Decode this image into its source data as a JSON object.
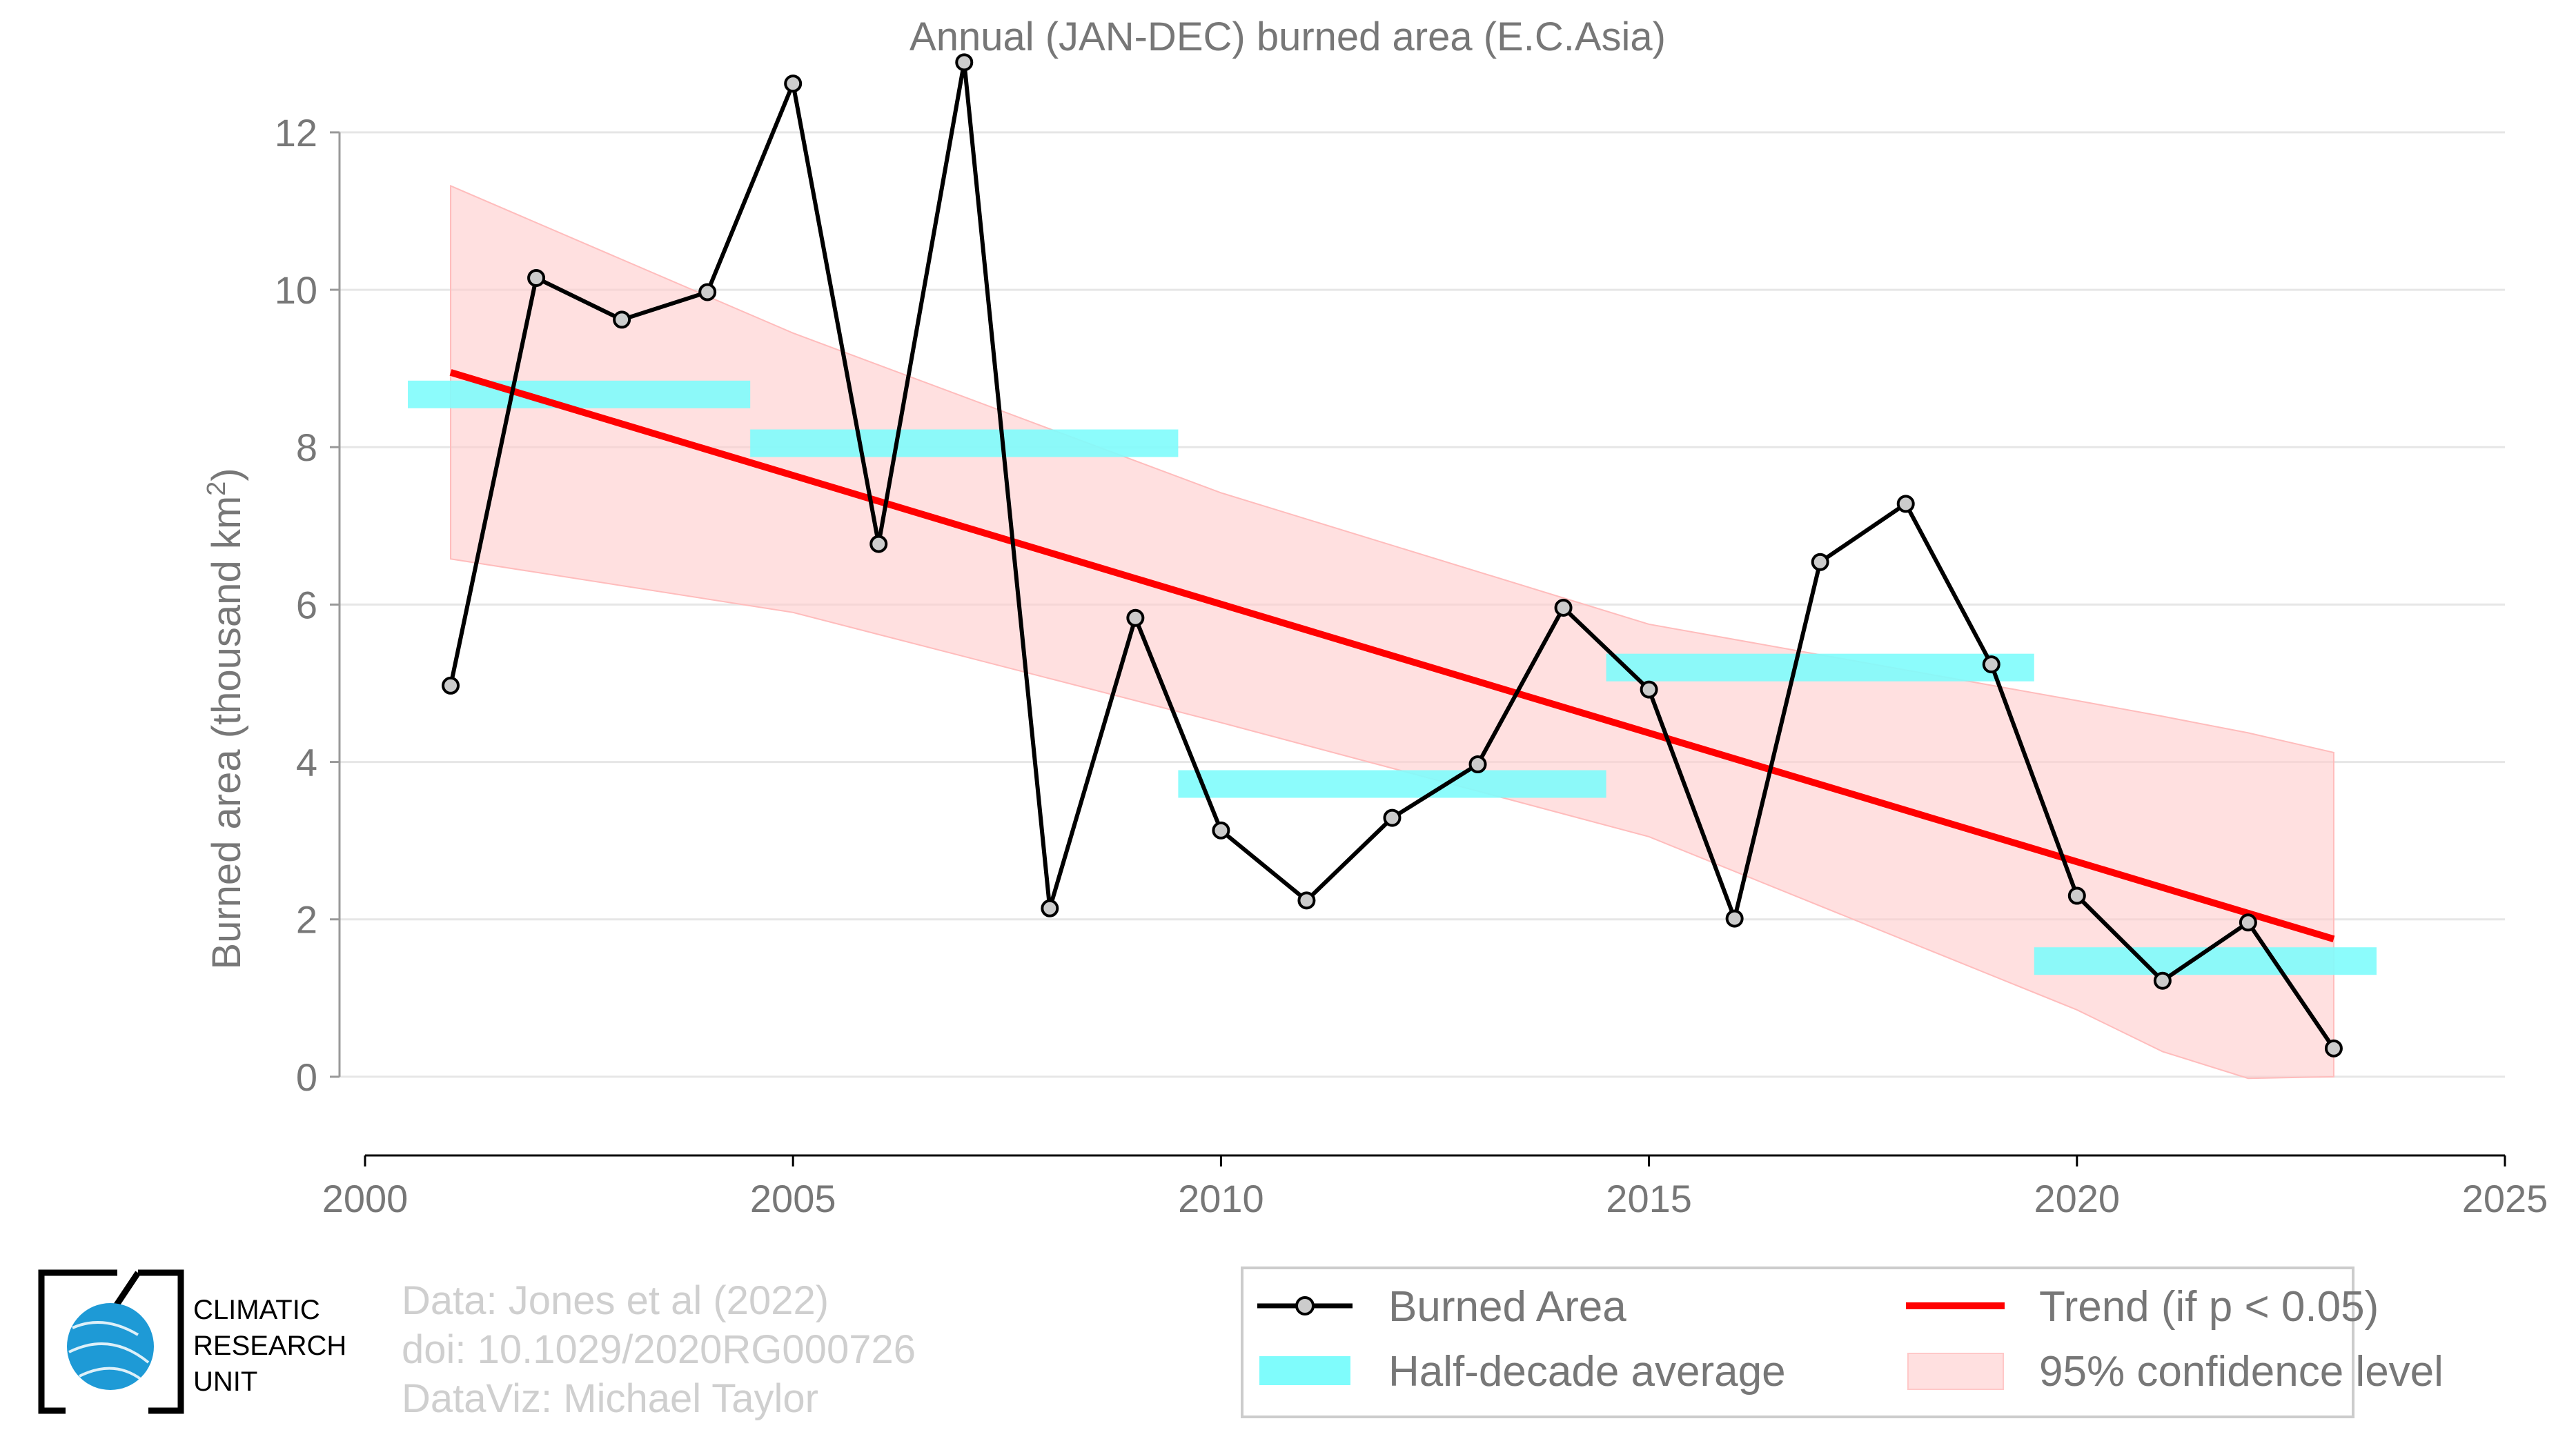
{
  "chart_data": {
    "type": "line",
    "title": "Annual (JAN-DEC) burned area (E.C.Asia)",
    "ylabel_main": "Burned area (thousand km",
    "ylabel_sup": "2",
    "ylabel_close": ")",
    "xlim": [
      2000,
      2025
    ],
    "ylim": [
      -1,
      13.2
    ],
    "x_ticks": [
      2000,
      2005,
      2010,
      2015,
      2020,
      2025
    ],
    "y_ticks": [
      0,
      2,
      4,
      6,
      8,
      10,
      12
    ],
    "grid": "horizontal",
    "series": [
      {
        "name": "Burned Area",
        "x": [
          2001,
          2002,
          2003,
          2004,
          2005,
          2006,
          2007,
          2008,
          2009,
          2010,
          2011,
          2012,
          2013,
          2014,
          2015,
          2016,
          2017,
          2018,
          2019,
          2020,
          2021,
          2022,
          2023
        ],
        "y": [
          4.97,
          10.15,
          9.62,
          9.97,
          12.62,
          6.77,
          12.89,
          2.14,
          5.83,
          3.13,
          2.24,
          3.29,
          3.97,
          5.96,
          4.92,
          2.01,
          6.54,
          7.28,
          5.24,
          2.3,
          1.22,
          1.96,
          0.36
        ],
        "color": "#000000"
      }
    ],
    "half_decade_average": {
      "name": "Half-decade average",
      "color": "#7ffcfc",
      "segments": [
        {
          "x0": 2000.5,
          "x1": 2004.5,
          "y": 8.67
        },
        {
          "x0": 2004.5,
          "x1": 2009.5,
          "y": 8.05
        },
        {
          "x0": 2009.5,
          "x1": 2014.5,
          "y": 3.72
        },
        {
          "x0": 2014.5,
          "x1": 2019.5,
          "y": 5.2
        },
        {
          "x0": 2019.5,
          "x1": 2023.5,
          "y": 1.47
        }
      ]
    },
    "trend": {
      "name": "Trend (if p < 0.05)",
      "color": "#ff0000",
      "x": [
        2001,
        2023
      ],
      "y": [
        8.95,
        1.75
      ]
    },
    "confidence": {
      "name": "95% confidence level",
      "color": "#ffcccc",
      "x": [
        2001,
        2005,
        2010,
        2015,
        2020,
        2021,
        2022,
        2023
      ],
      "upper": [
        11.32,
        9.45,
        7.42,
        5.75,
        4.78,
        4.58,
        4.37,
        4.12
      ],
      "lower": [
        6.58,
        5.9,
        4.5,
        3.05,
        0.85,
        0.32,
        -0.02,
        0.0
      ]
    },
    "legend_position": "bottom-right"
  },
  "credits": {
    "line1": "Data: Jones et al (2022)",
    "line2": "doi: 10.1029/2020RG000726",
    "line3": "DataViz: Michael Taylor"
  },
  "logo": {
    "line1": "CLIMATIC",
    "line2": "RESEARCH",
    "line3": "UNIT",
    "color": "#1e9ad6"
  }
}
